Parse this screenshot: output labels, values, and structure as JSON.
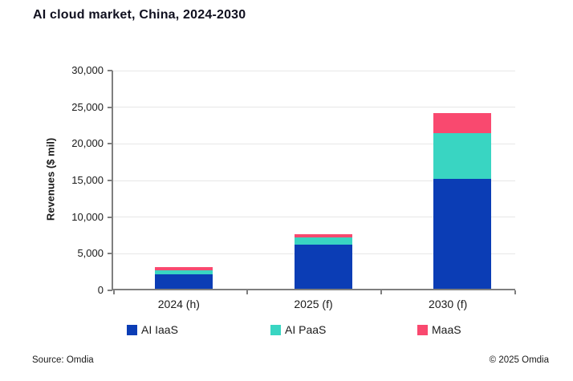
{
  "title": "AI cloud market, China, 2024-2030",
  "footer": {
    "source": "Source: Omdia",
    "copyright": "© 2025 Omdia"
  },
  "chart_data": {
    "type": "bar",
    "stacked": true,
    "title": "AI cloud market, China, 2024-2030",
    "categories": [
      "2024 (h)",
      "2025 (f)",
      "2030 (f)"
    ],
    "series": [
      {
        "name": "AI IaaS",
        "color": "#0b3db5",
        "values": [
          2000,
          6000,
          15000
        ]
      },
      {
        "name": "AI PaaS",
        "color": "#39d5c2",
        "values": [
          500,
          1000,
          6200
        ]
      },
      {
        "name": "MaaS",
        "color": "#f9496f",
        "values": [
          500,
          400,
          2800
        ]
      }
    ],
    "totals": [
      3000,
      7400,
      24000
    ],
    "xlabel": "",
    "ylabel": "Revenues ($ mil)",
    "ylim": [
      0,
      30000
    ],
    "ytick_step": 5000,
    "ytick_labels": [
      "0",
      "5,000",
      "10,000",
      "15,000",
      "20,000",
      "25,000",
      "30,000"
    ],
    "grid": true,
    "legend_position": "bottom"
  }
}
